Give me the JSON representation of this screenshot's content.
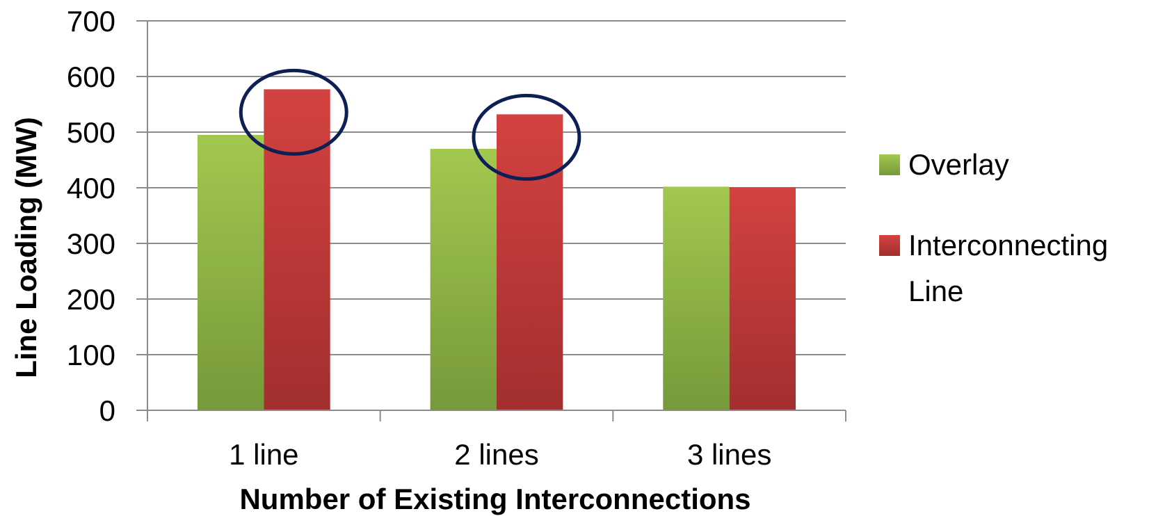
{
  "chart_data": {
    "type": "bar",
    "title": "",
    "xlabel": "Number of Existing Interconnections",
    "ylabel": "Line Loading (MW)",
    "categories": [
      "1 line",
      "2 lines",
      "3 lines"
    ],
    "series": [
      {
        "name": "Overlay",
        "values": [
          495,
          470,
          402
        ],
        "color": "#8db33c"
      },
      {
        "name": "Interconnecting Line",
        "values": [
          577,
          532,
          401
        ],
        "color": "#c0393a"
      }
    ],
    "ylim": [
      0,
      700
    ],
    "yticks": [
      0,
      100,
      200,
      300,
      400,
      500,
      600,
      700
    ],
    "grid": true,
    "legend": "right",
    "legend_entries": [
      {
        "lines": [
          "Overlay"
        ]
      },
      {
        "lines": [
          "Interconnecting",
          "Line"
        ]
      }
    ],
    "highlight_color": "#0d1f55"
  }
}
